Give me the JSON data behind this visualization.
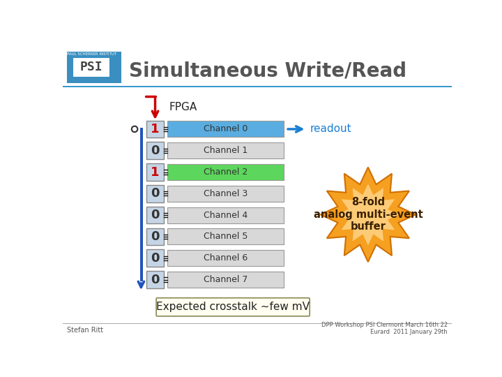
{
  "title": "Simultaneous Write/Read",
  "fpga_label": "FPGA",
  "channels": [
    "Channel 0",
    "Channel 1",
    "Channel 2",
    "Channel 3",
    "Channel 4",
    "Channel 5",
    "Channel 6",
    "Channel 7"
  ],
  "bit_values": [
    "1",
    "0",
    "1",
    "0",
    "0",
    "0",
    "0",
    "0"
  ],
  "channel_colors": [
    "#5aade0",
    "#d8d8d8",
    "#5cd65c",
    "#d8d8d8",
    "#d8d8d8",
    "#d8d8d8",
    "#d8d8d8",
    "#d8d8d8"
  ],
  "bit_box_color": "#c5d5e5",
  "bit_text_colors": [
    "#cc0000",
    "#333333",
    "#cc0000",
    "#333333",
    "#333333",
    "#333333",
    "#333333",
    "#333333"
  ],
  "readout_label": "readout",
  "readout_color": "#1a7fd4",
  "starburst_text": "8-fold\nanalog multi-event\nbuffer",
  "bottom_label": "Expected crosstalk ~few mV",
  "footer_left": "Stefan Ritt",
  "footer_right": "DPP Workshop PSI Clermont March 16th 22\nEurard  2011 January 29th",
  "bg_color": "#ffffff",
  "header_line_color": "#3399cc",
  "blue_bar_color": "#2255bb",
  "starburst_color": "#f5a020",
  "starburst_center_color": "#ffd080",
  "starburst_edge_color": "#d07000"
}
